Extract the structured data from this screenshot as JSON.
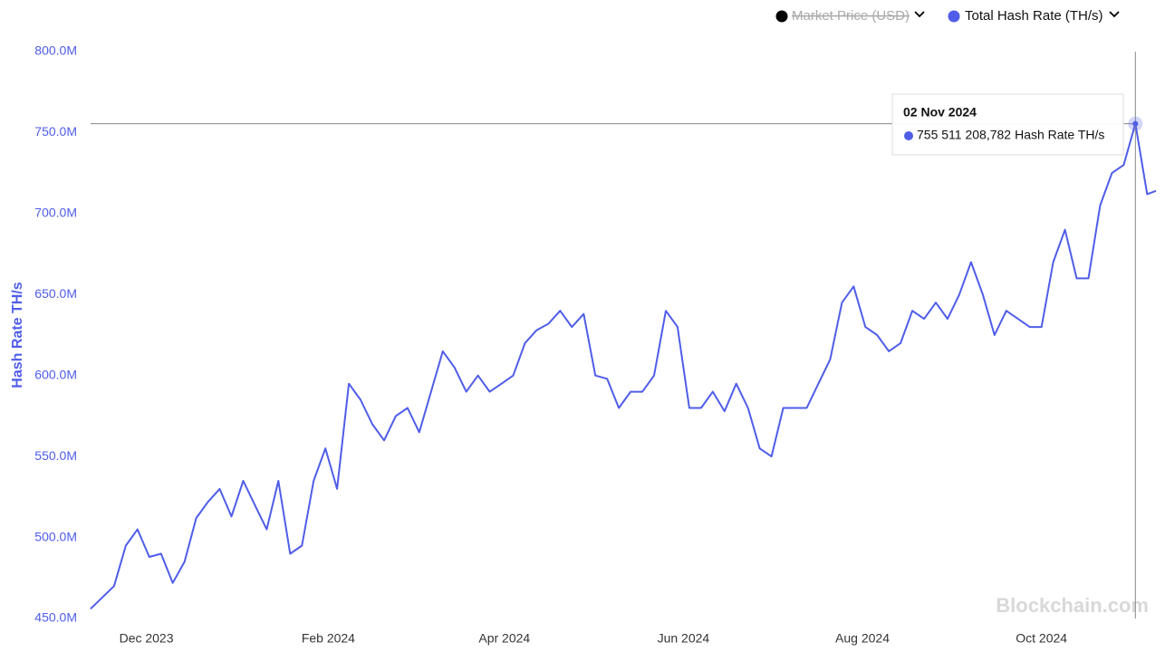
{
  "chart_data": {
    "type": "line",
    "y_label": "Hash Rate TH/s",
    "watermark": "Blockchain.com",
    "hidden_series": [
      {
        "name": "Market Price (USD)",
        "color": "#000000"
      }
    ],
    "x": [
      "2023-11-12",
      "2023-11-16",
      "2023-11-20",
      "2023-11-24",
      "2023-11-28",
      "2023-12-02",
      "2023-12-06",
      "2023-12-10",
      "2023-12-14",
      "2023-12-18",
      "2023-12-22",
      "2023-12-26",
      "2023-12-30",
      "2024-01-03",
      "2024-01-07",
      "2024-01-11",
      "2024-01-15",
      "2024-01-19",
      "2024-01-23",
      "2024-01-27",
      "2024-01-31",
      "2024-02-04",
      "2024-02-08",
      "2024-02-12",
      "2024-02-16",
      "2024-02-20",
      "2024-02-24",
      "2024-02-28",
      "2024-03-03",
      "2024-03-07",
      "2024-03-11",
      "2024-03-15",
      "2024-03-19",
      "2024-03-23",
      "2024-03-27",
      "2024-03-31",
      "2024-04-04",
      "2024-04-08",
      "2024-04-12",
      "2024-04-16",
      "2024-04-20",
      "2024-04-24",
      "2024-04-28",
      "2024-05-02",
      "2024-05-06",
      "2024-05-10",
      "2024-05-14",
      "2024-05-18",
      "2024-05-22",
      "2024-05-26",
      "2024-05-30",
      "2024-06-03",
      "2024-06-07",
      "2024-06-11",
      "2024-06-15",
      "2024-06-19",
      "2024-06-23",
      "2024-06-27",
      "2024-07-01",
      "2024-07-05",
      "2024-07-09",
      "2024-07-13",
      "2024-07-17",
      "2024-07-21",
      "2024-07-25",
      "2024-07-29",
      "2024-08-02",
      "2024-08-06",
      "2024-08-10",
      "2024-08-14",
      "2024-08-18",
      "2024-08-22",
      "2024-08-26",
      "2024-08-30",
      "2024-09-03",
      "2024-09-07",
      "2024-09-11",
      "2024-09-15",
      "2024-09-19",
      "2024-09-23",
      "2024-09-27",
      "2024-10-01",
      "2024-10-05",
      "2024-10-09",
      "2024-10-13",
      "2024-10-17",
      "2024-10-21",
      "2024-10-25",
      "2024-10-29",
      "2024-11-02",
      "2024-11-06",
      "2024-11-09"
    ],
    "series": [
      {
        "name": "Total Hash Rate (TH/s)",
        "color": "#4f5de8",
        "values": [
          456000000,
          463000000,
          470000000,
          495000000,
          505000000,
          488000000,
          490000000,
          472000000,
          485000000,
          512000000,
          522000000,
          530000000,
          513000000,
          535000000,
          520000000,
          505000000,
          535000000,
          490000000,
          495000000,
          535000000,
          555000000,
          530000000,
          595000000,
          585000000,
          570000000,
          560000000,
          575000000,
          580000000,
          565000000,
          590000000,
          615000000,
          605000000,
          590000000,
          600000000,
          590000000,
          595000000,
          600000000,
          620000000,
          628000000,
          632000000,
          640000000,
          630000000,
          638000000,
          600000000,
          598000000,
          580000000,
          590000000,
          590000000,
          600000000,
          640000000,
          630000000,
          580000000,
          580000000,
          590000000,
          578000000,
          595000000,
          580000000,
          555000000,
          550000000,
          580000000,
          580000000,
          580000000,
          595000000,
          610000000,
          645000000,
          655000000,
          630000000,
          625000000,
          615000000,
          620000000,
          640000000,
          635000000,
          645000000,
          635000000,
          650000000,
          670000000,
          650000000,
          625000000,
          640000000,
          635000000,
          630000000,
          630000000,
          670000000,
          690000000,
          660000000,
          660000000,
          705000000,
          725000000,
          730000000,
          755511208.782,
          712000000,
          714000000
        ]
      }
    ],
    "tooltip": {
      "date": "02 Nov 2024",
      "value_label": "755 511 208,782",
      "name": "Hash Rate TH/s"
    },
    "xlim": [
      "2023-11-12",
      "2024-11-09"
    ],
    "xticks": [
      {
        "value": "2023-12-01",
        "label": "Dec 2023"
      },
      {
        "value": "2024-02-01",
        "label": "Feb 2024"
      },
      {
        "value": "2024-04-01",
        "label": "Apr 2024"
      },
      {
        "value": "2024-06-01",
        "label": "Jun 2024"
      },
      {
        "value": "2024-08-01",
        "label": "Aug 2024"
      },
      {
        "value": "2024-10-01",
        "label": "Oct 2024"
      }
    ],
    "ylim": [
      450000000,
      800000000
    ],
    "yticks": [
      {
        "value": 450000000,
        "label": "450.0M"
      },
      {
        "value": 500000000,
        "label": "500.0M"
      },
      {
        "value": 550000000,
        "label": "550.0M"
      },
      {
        "value": 600000000,
        "label": "600.0M"
      },
      {
        "value": 650000000,
        "label": "650.0M"
      },
      {
        "value": 700000000,
        "label": "700.0M"
      },
      {
        "value": 750000000,
        "label": "750.0M"
      },
      {
        "value": 800000000,
        "label": "800.0M"
      }
    ],
    "grid": false
  }
}
